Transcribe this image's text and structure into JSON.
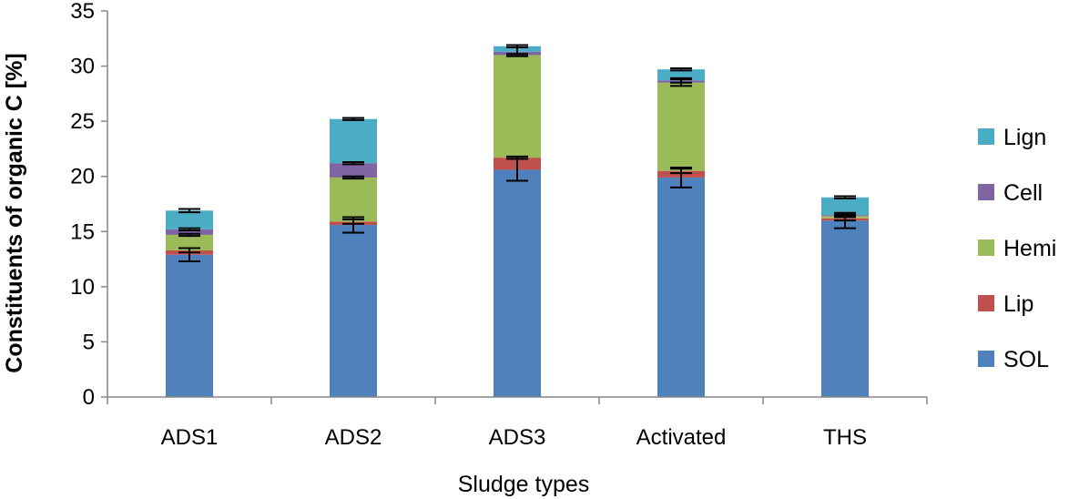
{
  "chart_data": {
    "type": "bar",
    "stacked": true,
    "xlabel": "Sludge types",
    "ylabel": "Constituents of organic C [%]",
    "ylim": [
      0,
      35
    ],
    "yticks": [
      "0",
      "5",
      "10",
      "15",
      "20",
      "25",
      "30",
      "35"
    ],
    "categories": [
      "ADS1",
      "ADS2",
      "ADS3",
      "Activated",
      "THS"
    ],
    "legend_position": "right",
    "series": [
      {
        "name": "SOL",
        "color": "#4F81BD",
        "values": [
          12.9,
          15.6,
          20.6,
          19.9,
          16.0
        ],
        "error": [
          0.6,
          0.7,
          1.0,
          0.9,
          0.7
        ]
      },
      {
        "name": "Lip",
        "color": "#C0504D",
        "values": [
          0.4,
          0.3,
          1.1,
          0.6,
          0.2
        ],
        "error": [
          0.2,
          0.2,
          0.1,
          0.2,
          0.2
        ]
      },
      {
        "name": "Hemi",
        "color": "#9BBB59",
        "values": [
          1.4,
          4.0,
          9.3,
          8.0,
          0.2
        ],
        "error": [
          0.1,
          0.1,
          0.1,
          0.3,
          0.1
        ]
      },
      {
        "name": "Cell",
        "color": "#8064A2",
        "values": [
          0.5,
          1.3,
          0.3,
          0.2,
          0.1
        ],
        "error": [
          0.1,
          0.1,
          0.4,
          0.2,
          0.1
        ]
      },
      {
        "name": "Lign",
        "color": "#4BACC6",
        "values": [
          1.7,
          4.0,
          0.5,
          1.0,
          1.6
        ],
        "error": [
          0.15,
          0.1,
          0.1,
          0.1,
          0.1
        ]
      }
    ]
  }
}
